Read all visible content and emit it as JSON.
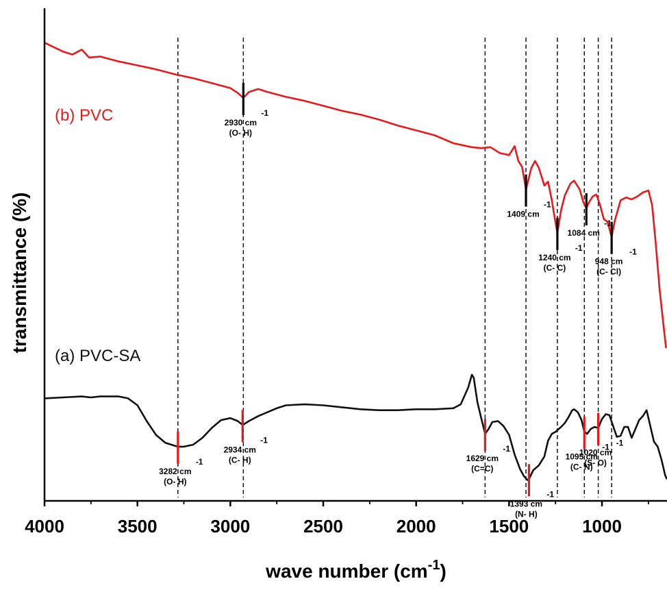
{
  "chart_data": {
    "type": "line",
    "xlabel": "wave number (cm",
    "xlabel_sup": "-1",
    "xlabel_close": ")",
    "ylabel": "transmittance (%)",
    "xlim": [
      4000,
      650
    ],
    "ylim": [
      0,
      100
    ],
    "x_ticks": [
      "4000",
      "3500",
      "3000",
      "2500",
      "2000",
      "1500",
      "1000"
    ],
    "grid": false,
    "reference_lines": [
      3282,
      2930,
      1629,
      1409,
      1240,
      1095,
      1020,
      948
    ],
    "series": [
      {
        "name": "(b) PVC",
        "color": "#e8191c",
        "points": [
          [
            4000,
            93.0
          ],
          [
            3900,
            91.2
          ],
          [
            3850,
            90.6
          ],
          [
            3800,
            91.6
          ],
          [
            3760,
            90.0
          ],
          [
            3700,
            90.2
          ],
          [
            3600,
            89.2
          ],
          [
            3500,
            88.4
          ],
          [
            3400,
            87.6
          ],
          [
            3300,
            86.6
          ],
          [
            3200,
            85.8
          ],
          [
            3100,
            84.8
          ],
          [
            3000,
            83.8
          ],
          [
            2960,
            82.8
          ],
          [
            2930,
            81.8
          ],
          [
            2900,
            83.0
          ],
          [
            2850,
            83.6
          ],
          [
            2800,
            83.0
          ],
          [
            2700,
            82.0
          ],
          [
            2600,
            81.2
          ],
          [
            2500,
            80.2
          ],
          [
            2400,
            79.2
          ],
          [
            2300,
            78.4
          ],
          [
            2200,
            77.4
          ],
          [
            2100,
            76.2
          ],
          [
            2000,
            75.2
          ],
          [
            1900,
            74.2
          ],
          [
            1800,
            72.6
          ],
          [
            1700,
            71.8
          ],
          [
            1650,
            71.6
          ],
          [
            1600,
            71.8
          ],
          [
            1550,
            70.6
          ],
          [
            1500,
            70.2
          ],
          [
            1470,
            72.0
          ],
          [
            1450,
            69.0
          ],
          [
            1430,
            67.8
          ],
          [
            1409,
            63.2
          ],
          [
            1380,
            67.6
          ],
          [
            1360,
            69.0
          ],
          [
            1340,
            67.6
          ],
          [
            1310,
            64.0
          ],
          [
            1290,
            64.8
          ],
          [
            1270,
            61.0
          ],
          [
            1255,
            57.6
          ],
          [
            1240,
            54.4
          ],
          [
            1220,
            59.0
          ],
          [
            1200,
            62.0
          ],
          [
            1170,
            64.4
          ],
          [
            1150,
            65.0
          ],
          [
            1120,
            63.2
          ],
          [
            1100,
            60.6
          ],
          [
            1084,
            59.4
          ],
          [
            1070,
            60.6
          ],
          [
            1050,
            61.8
          ],
          [
            1030,
            62.2
          ],
          [
            1010,
            60.0
          ],
          [
            990,
            57.2
          ],
          [
            970,
            56.6
          ],
          [
            948,
            53.6
          ],
          [
            930,
            57.0
          ],
          [
            900,
            61.0
          ],
          [
            870,
            61.6
          ],
          [
            840,
            61.2
          ],
          [
            810,
            61.8
          ],
          [
            780,
            62.6
          ],
          [
            750,
            63.0
          ],
          [
            730,
            60.0
          ],
          [
            710,
            52.0
          ],
          [
            690,
            43.0
          ],
          [
            670,
            36.0
          ],
          [
            655,
            31.0
          ]
        ]
      },
      {
        "name": "(a) PVC-SA",
        "color": "#111111",
        "points": [
          [
            4000,
            20.8
          ],
          [
            3900,
            21.0
          ],
          [
            3800,
            21.2
          ],
          [
            3750,
            21.0
          ],
          [
            3700,
            21.2
          ],
          [
            3600,
            21.2
          ],
          [
            3550,
            20.8
          ],
          [
            3500,
            19.4
          ],
          [
            3450,
            16.2
          ],
          [
            3400,
            13.4
          ],
          [
            3350,
            11.8
          ],
          [
            3300,
            11.2
          ],
          [
            3282,
            11.0
          ],
          [
            3250,
            11.0
          ],
          [
            3200,
            11.4
          ],
          [
            3150,
            12.8
          ],
          [
            3100,
            14.8
          ],
          [
            3050,
            16.4
          ],
          [
            3000,
            16.8
          ],
          [
            2960,
            16.2
          ],
          [
            2934,
            15.4
          ],
          [
            2900,
            16.2
          ],
          [
            2850,
            17.2
          ],
          [
            2800,
            18.0
          ],
          [
            2750,
            18.8
          ],
          [
            2700,
            19.4
          ],
          [
            2600,
            19.6
          ],
          [
            2500,
            19.4
          ],
          [
            2400,
            19.0
          ],
          [
            2300,
            18.6
          ],
          [
            2200,
            18.4
          ],
          [
            2100,
            18.4
          ],
          [
            2000,
            18.6
          ],
          [
            1900,
            18.6
          ],
          [
            1800,
            18.8
          ],
          [
            1760,
            19.6
          ],
          [
            1720,
            23.0
          ],
          [
            1700,
            25.6
          ],
          [
            1690,
            25.0
          ],
          [
            1670,
            20.0
          ],
          [
            1650,
            16.8
          ],
          [
            1629,
            13.6
          ],
          [
            1610,
            14.6
          ],
          [
            1590,
            16.0
          ],
          [
            1560,
            16.2
          ],
          [
            1530,
            15.2
          ],
          [
            1500,
            13.4
          ],
          [
            1470,
            9.4
          ],
          [
            1440,
            6.4
          ],
          [
            1420,
            5.0
          ],
          [
            1400,
            4.2
          ],
          [
            1393,
            4.4
          ],
          [
            1370,
            6.2
          ],
          [
            1340,
            7.2
          ],
          [
            1310,
            9.0
          ],
          [
            1290,
            12.2
          ],
          [
            1270,
            13.6
          ],
          [
            1250,
            14.0
          ],
          [
            1220,
            15.0
          ],
          [
            1200,
            15.8
          ],
          [
            1180,
            17.0
          ],
          [
            1160,
            18.4
          ],
          [
            1150,
            18.6
          ],
          [
            1130,
            18.0
          ],
          [
            1110,
            16.4
          ],
          [
            1095,
            14.0
          ],
          [
            1080,
            13.6
          ],
          [
            1060,
            14.6
          ],
          [
            1040,
            15.0
          ],
          [
            1020,
            14.8
          ],
          [
            1000,
            16.6
          ],
          [
            980,
            17.6
          ],
          [
            960,
            17.4
          ],
          [
            940,
            15.2
          ],
          [
            920,
            13.0
          ],
          [
            900,
            13.2
          ],
          [
            880,
            15.0
          ],
          [
            860,
            15.0
          ],
          [
            840,
            12.8
          ],
          [
            820,
            14.6
          ],
          [
            800,
            16.4
          ],
          [
            780,
            17.2
          ],
          [
            760,
            18.4
          ],
          [
            740,
            15.2
          ],
          [
            720,
            12.0
          ],
          [
            700,
            11.0
          ],
          [
            680,
            8.4
          ],
          [
            660,
            5.2
          ],
          [
            650,
            4.4
          ]
        ]
      }
    ],
    "annotations": [
      {
        "x": 2930,
        "series": 0,
        "label": "2930 cm",
        "sub": "(O- H)"
      },
      {
        "x": 1409,
        "series": 0,
        "label": "1409 cm",
        "sub": ""
      },
      {
        "x": 1240,
        "series": 0,
        "label": "1240 cm",
        "sub": "(C- C)"
      },
      {
        "x": 1084,
        "series": 0,
        "label": "1084 cm",
        "sub": ""
      },
      {
        "x": 948,
        "series": 0,
        "label": "948 cm",
        "sub": "(C- Cl)"
      },
      {
        "x": 3282,
        "series": 1,
        "label": "3282 cm",
        "sub": "(O- H)"
      },
      {
        "x": 2934,
        "series": 1,
        "label": "2934 cm",
        "sub": "(C- H)"
      },
      {
        "x": 1629,
        "series": 1,
        "label": "1629 cm",
        "sub": "(C=C)"
      },
      {
        "x": 1393,
        "series": 1,
        "label": "1393 cm",
        "sub": "(N- H)"
      },
      {
        "x": 1095,
        "series": 1,
        "label": "1095 cm",
        "sub": "(C- N)"
      },
      {
        "x": 1020,
        "series": 1,
        "label": "1020 cm",
        "sub": "(S- O)"
      }
    ],
    "annotation_superscript": "-1"
  }
}
